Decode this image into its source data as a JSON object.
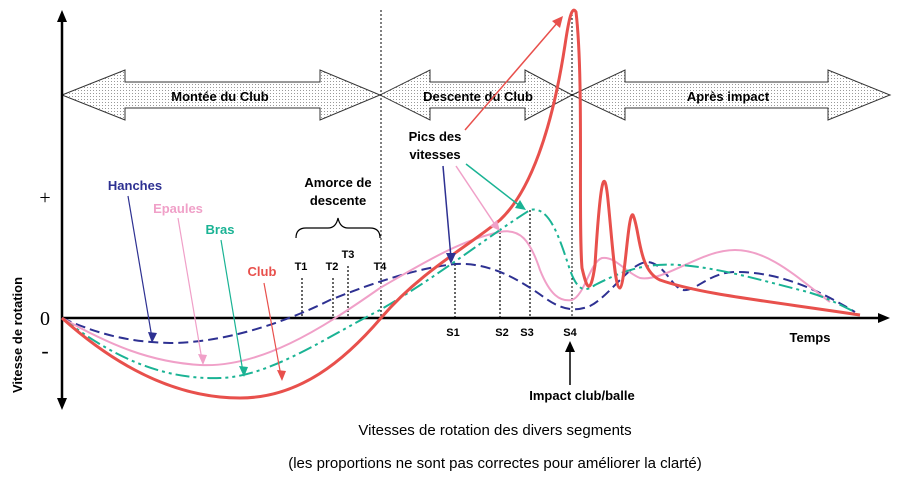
{
  "phases": {
    "backswing": "Montée du Club",
    "downswing": "Descente du Club",
    "after_impact": "Après impact"
  },
  "axes": {
    "ylabel": "Vitesse de rotation",
    "xlabel": "Temps",
    "plus": "+",
    "zero": "0",
    "minus": "-"
  },
  "labels": {
    "hips": "Hanches",
    "shoulders": "Epaules",
    "arms": "Bras",
    "club": "Club",
    "downswing_start_line1": "Amorce de",
    "downswing_start_line2": "descente",
    "speed_peaks_line1": "Pics des",
    "speed_peaks_line2": "vitesses",
    "impact": "Impact club/balle"
  },
  "markers": {
    "t": [
      "T1",
      "T2",
      "T3",
      "T4"
    ],
    "s": [
      "S1",
      "S2",
      "S3",
      "S4"
    ]
  },
  "caption": {
    "line1": "Vitesses de rotation des divers segments",
    "line2": "(les proportions ne sont pas correctes pour améliorer la clarté)"
  },
  "colors": {
    "hips": "#2e3192",
    "shoulders": "#f0a0c8",
    "arms": "#1ab394",
    "club": "#e8504c"
  }
}
